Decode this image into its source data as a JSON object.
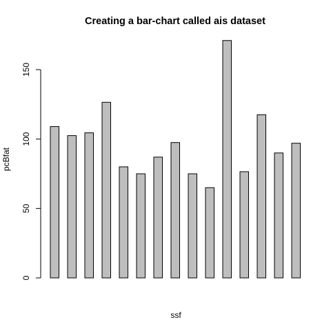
{
  "chart_data": {
    "type": "bar",
    "title": "Creating a bar-chart called ais dataset",
    "xlabel": "ssf",
    "ylabel": "pcBfat",
    "ylim": [
      0,
      175
    ],
    "yticks": [
      0,
      50,
      100,
      150
    ],
    "values": [
      109,
      102.5,
      104.5,
      126.5,
      80,
      75,
      87,
      97.5,
      75,
      65,
      171,
      76.5,
      117.5,
      90,
      97
    ],
    "grid": false,
    "bar_color": "#bebebe",
    "border_color": "#000000"
  }
}
